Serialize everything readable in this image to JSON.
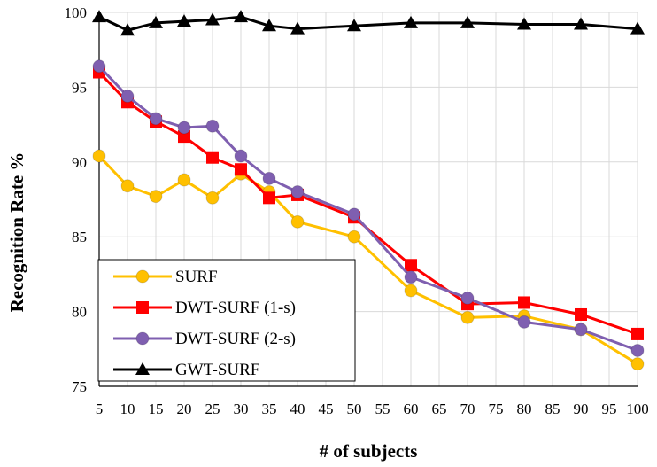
{
  "chart_data": {
    "type": "line",
    "title": "",
    "xlabel": "# of subjects",
    "ylabel": "Recognition Rate %",
    "ylim": [
      75,
      100
    ],
    "yticks": [
      75,
      80,
      85,
      90,
      95,
      100
    ],
    "x_tick_labels": [
      "5",
      "10",
      "15",
      "20",
      "25",
      "30",
      "35",
      "40",
      "45",
      "50",
      "55",
      "60",
      "65",
      "70",
      "75",
      "80",
      "85",
      "90",
      "95",
      "100"
    ],
    "grid": true,
    "legend_position": "bottom-left",
    "series": [
      {
        "name": "SURF",
        "color": "#FFC000",
        "marker": "circle",
        "x": [
          5,
          10,
          15,
          20,
          25,
          30,
          35,
          40,
          50,
          60,
          70,
          80,
          90,
          100
        ],
        "values": [
          90.4,
          88.4,
          87.7,
          88.8,
          87.6,
          89.2,
          88.0,
          86.0,
          85.0,
          81.4,
          79.6,
          79.7,
          78.8,
          76.5
        ]
      },
      {
        "name": "DWT-SURF (1-s)",
        "color": "#FF0000",
        "marker": "square",
        "x": [
          5,
          10,
          15,
          20,
          25,
          30,
          35,
          40,
          50,
          60,
          70,
          80,
          90,
          100
        ],
        "values": [
          96.0,
          94.0,
          92.7,
          91.7,
          90.3,
          89.5,
          87.6,
          87.8,
          86.3,
          83.1,
          80.5,
          80.6,
          79.8,
          78.5
        ]
      },
      {
        "name": "DWT-SURF (2-s)",
        "color": "#7F5FB0",
        "marker": "circle",
        "x": [
          5,
          10,
          15,
          20,
          25,
          30,
          35,
          40,
          50,
          60,
          70,
          80,
          90,
          100
        ],
        "values": [
          96.4,
          94.4,
          92.9,
          92.3,
          92.4,
          90.4,
          88.9,
          88.0,
          86.5,
          82.3,
          80.9,
          79.3,
          78.8,
          77.4
        ]
      },
      {
        "name": "GWT-SURF",
        "color": "#000000",
        "marker": "triangle",
        "x": [
          5,
          10,
          15,
          20,
          25,
          30,
          35,
          40,
          50,
          60,
          70,
          80,
          90,
          100
        ],
        "values": [
          99.7,
          98.8,
          99.3,
          99.4,
          99.5,
          99.7,
          99.1,
          98.9,
          99.1,
          99.3,
          99.3,
          99.2,
          99.2,
          98.9
        ]
      }
    ]
  }
}
